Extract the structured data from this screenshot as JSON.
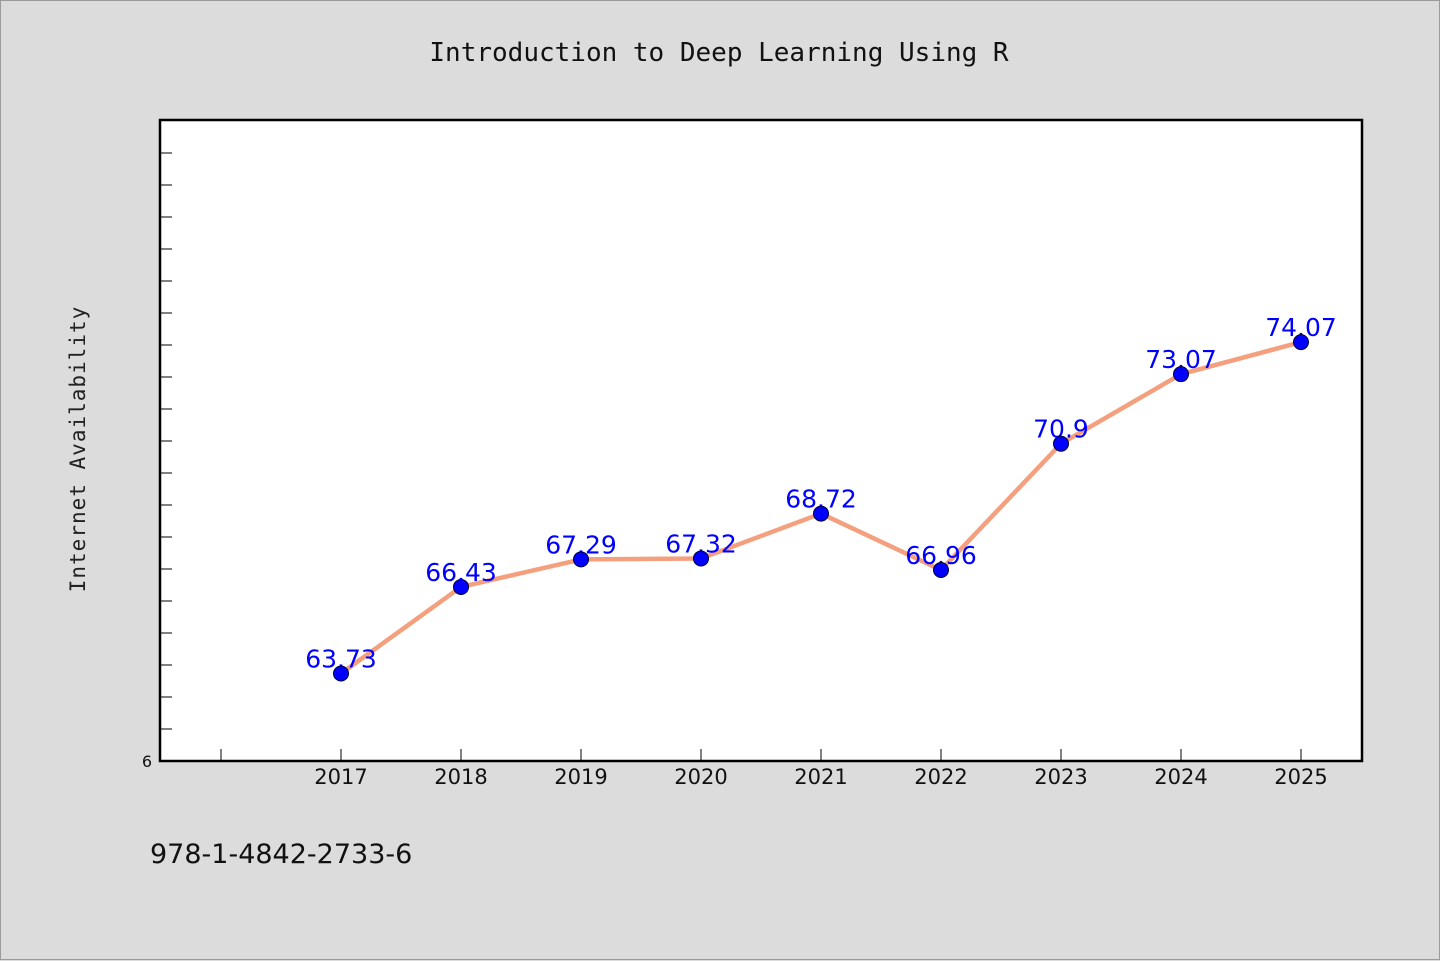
{
  "chart_data": {
    "type": "line",
    "title": "Introduction to Deep Learning Using R",
    "ylabel": "Internet Availability",
    "xlabel": "",
    "categories": [
      "2017",
      "2018",
      "2019",
      "2020",
      "2021",
      "2022",
      "2023",
      "2024",
      "2025"
    ],
    "series": [
      {
        "values": [
          63.73,
          66.43,
          67.29,
          67.32,
          68.72,
          66.96,
          70.9,
          73.07,
          74.07
        ],
        "labels": [
          "63.73",
          "66.43",
          "67.29",
          "67.32",
          "68.72",
          "66.96",
          "70.9",
          "73.07",
          "74.07"
        ],
        "line_color": "#f4a07e",
        "marker_color": "#0000ff"
      }
    ],
    "ylim": [
      61,
      81
    ],
    "ytick_labels": [
      "6"
    ],
    "grid": false,
    "legend": false
  },
  "footer": {
    "isbn": "978-1-4842-2733-6"
  },
  "colors": {
    "background": "#dcdcdc",
    "plot_background": "#ffffff",
    "line": "#f4a07e",
    "marker": "#0000ff",
    "data_label": "#0000ff"
  }
}
